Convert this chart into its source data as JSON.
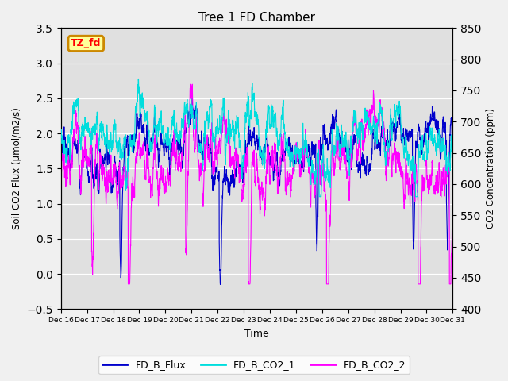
{
  "title": "Tree 1 FD Chamber",
  "xlabel": "Time",
  "ylabel_left": "Soil CO2 Flux (μmol/m2/s)",
  "ylabel_right": "CO2 Concentration (ppm)",
  "ylim_left": [
    -0.5,
    3.5
  ],
  "ylim_right": [
    400,
    850
  ],
  "xtick_labels": [
    "Dec 16",
    "Dec 17",
    "Dec 18",
    "Dec 19",
    "Dec 20",
    "Dec 21",
    "Dec 22",
    "Dec 23",
    "Dec 24",
    "Dec 25",
    "Dec 26",
    "Dec 27",
    "Dec 28",
    "Dec 29",
    "Dec 30",
    "Dec 31"
  ],
  "legend_entries": [
    "FD_B_Flux",
    "FD_B_CO2_1",
    "FD_B_CO2_2"
  ],
  "flux_color": "#0000CC",
  "co2_1_color": "#00DDDD",
  "co2_2_color": "#FF00FF",
  "bg_color": "#f0f0f0",
  "plot_bg_color": "#e0e0e0",
  "annotation_text": "TZ_fd",
  "annotation_bg": "#ffff99",
  "annotation_border": "#cc8800",
  "linewidth": 0.8,
  "seed": 7,
  "n_points": 3000
}
